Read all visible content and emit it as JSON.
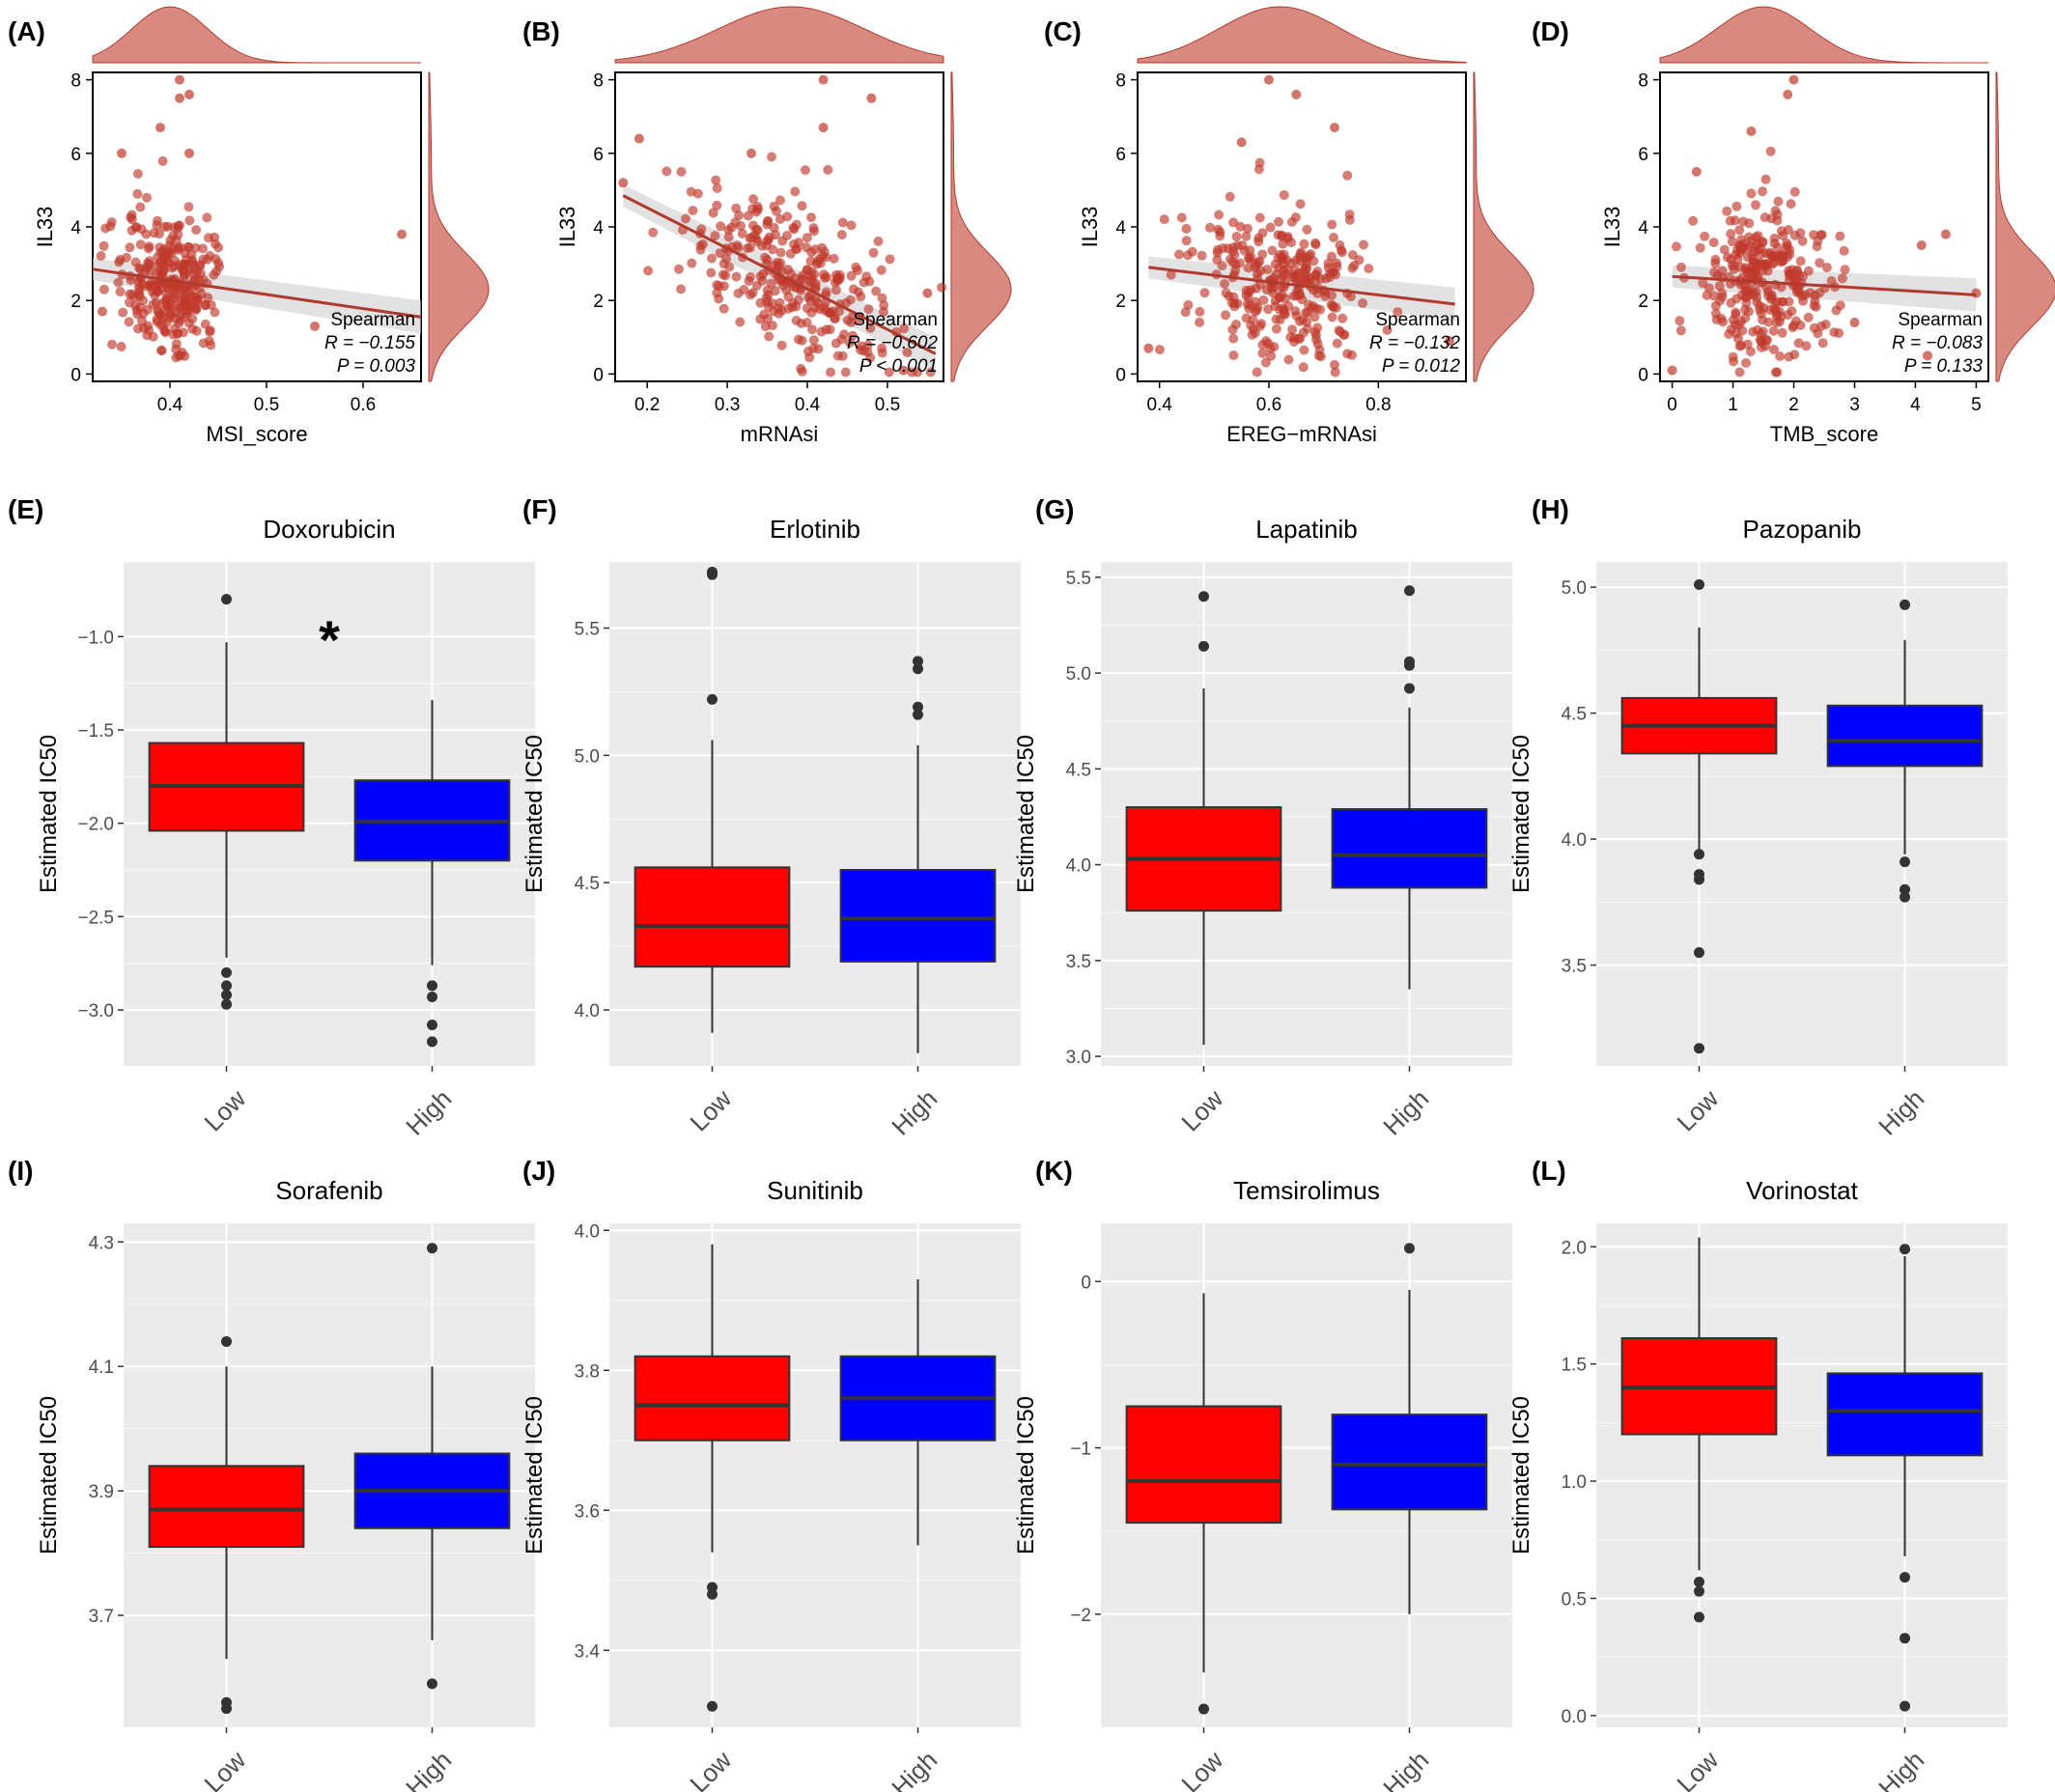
{
  "colors": {
    "scatter_point": "#c0392b",
    "scatter_line": "#b03a2e",
    "density_fill": "#d98a80",
    "panel_bg": "#ebebeb",
    "grid": "#ffffff",
    "box_low": "#ff0000",
    "box_high": "#0000ff",
    "median": "#333333",
    "outlier": "#333333"
  },
  "chart_data": [
    {
      "type": "scatter",
      "label": "(A)",
      "xlabel": "MSI_score",
      "ylabel": "IL33",
      "xlim": [
        0.32,
        0.66
      ],
      "ylim": [
        -0.2,
        8.2
      ],
      "xticks": [
        0.4,
        0.5,
        0.6
      ],
      "yticks": [
        0,
        2,
        4,
        6,
        8
      ],
      "xcenter": 0.4,
      "xspread": 0.028,
      "fit": {
        "x": [
          0.32,
          0.66
        ],
        "y": [
          2.85,
          1.55
        ]
      },
      "stat": {
        "method": "Spearman",
        "r_text": "R = −0.155",
        "p_text": "P = 0.003"
      },
      "extra_points": [
        [
          0.41,
          8.0
        ],
        [
          0.42,
          7.6
        ],
        [
          0.41,
          7.5
        ],
        [
          0.39,
          6.7
        ],
        [
          0.42,
          6.0
        ],
        [
          0.35,
          6.0
        ],
        [
          0.64,
          3.8
        ],
        [
          0.55,
          1.3
        ],
        [
          0.33,
          1.7
        ]
      ]
    },
    {
      "type": "scatter",
      "label": "(B)",
      "xlabel": "mRNAsi",
      "ylabel": "IL33",
      "xlim": [
        0.16,
        0.57
      ],
      "ylim": [
        -0.2,
        8.2
      ],
      "xticks": [
        0.2,
        0.3,
        0.4,
        0.5
      ],
      "yticks": [
        0,
        2,
        4,
        6,
        8
      ],
      "xcenter": 0.38,
      "xspread": 0.065,
      "fit": {
        "x": [
          0.17,
          0.56
        ],
        "y": [
          4.85,
          0.55
        ]
      },
      "stat": {
        "method": "Spearman",
        "r_text": "R = −0.602",
        "p_text": "P < 0.001"
      },
      "extra_points": [
        [
          0.42,
          8.0
        ],
        [
          0.48,
          7.5
        ],
        [
          0.42,
          6.7
        ],
        [
          0.19,
          6.4
        ],
        [
          0.33,
          6.0
        ],
        [
          0.17,
          5.2
        ],
        [
          0.55,
          2.2
        ],
        [
          0.52,
          0.1
        ]
      ]
    },
    {
      "type": "scatter",
      "label": "(C)",
      "xlabel": "EREG−mRNAsi",
      "ylabel": "IL33",
      "xlim": [
        0.36,
        0.96
      ],
      "ylim": [
        -0.2,
        8.2
      ],
      "xticks": [
        0.4,
        0.6,
        0.8
      ],
      "yticks": [
        0,
        2,
        4,
        6,
        8
      ],
      "xcenter": 0.62,
      "xspread": 0.08,
      "fit": {
        "x": [
          0.38,
          0.94
        ],
        "y": [
          2.9,
          1.9
        ]
      },
      "stat": {
        "method": "Spearman",
        "r_text": "R = −0.132",
        "p_text": "P = 0.012"
      },
      "extra_points": [
        [
          0.6,
          8.0
        ],
        [
          0.65,
          7.6
        ],
        [
          0.72,
          6.7
        ],
        [
          0.38,
          0.7
        ],
        [
          0.93,
          0.9
        ],
        [
          0.55,
          6.3
        ]
      ]
    },
    {
      "type": "scatter",
      "label": "(D)",
      "xlabel": "TMB_score",
      "ylabel": "IL33",
      "xlim": [
        -0.2,
        5.2
      ],
      "ylim": [
        -0.2,
        8.2
      ],
      "xticks": [
        0,
        1,
        2,
        3,
        4,
        5
      ],
      "yticks": [
        0,
        2,
        4,
        6,
        8
      ],
      "xcenter": 1.5,
      "xspread": 0.55,
      "fit": {
        "x": [
          0.0,
          5.0
        ],
        "y": [
          2.65,
          2.15
        ]
      },
      "stat": {
        "method": "Spearman",
        "r_text": "R = −0.083",
        "p_text": "P = 0.133"
      },
      "extra_points": [
        [
          2.0,
          8.0
        ],
        [
          1.9,
          7.6
        ],
        [
          1.3,
          6.6
        ],
        [
          0.4,
          5.5
        ],
        [
          4.5,
          3.8
        ],
        [
          4.1,
          3.5
        ],
        [
          5.0,
          2.2
        ],
        [
          3.0,
          1.4
        ],
        [
          0.0,
          0.1
        ],
        [
          4.2,
          0.5
        ]
      ]
    },
    {
      "type": "box",
      "label": "(E)",
      "title": "Doxorubicin",
      "ylabel": "Estimated IC50",
      "categories": [
        "Low",
        "High"
      ],
      "ylim": [
        -3.3,
        -0.6
      ],
      "yticks": [
        -3.0,
        -2.5,
        -2.0,
        -1.5,
        -1.0
      ],
      "annotation": "*",
      "boxes": [
        {
          "q1": -2.04,
          "median": -1.8,
          "q3": -1.57,
          "whisker_low": -2.72,
          "whisker_high": -1.03,
          "outliers": [
            -0.8,
            -2.8,
            -2.87,
            -2.92,
            -2.97
          ]
        },
        {
          "q1": -2.2,
          "median": -1.99,
          "q3": -1.77,
          "whisker_low": -2.76,
          "whisker_high": -1.34,
          "outliers": [
            -2.87,
            -2.93,
            -3.08,
            -3.17
          ]
        }
      ]
    },
    {
      "type": "box",
      "label": "(F)",
      "title": "Erlotinib",
      "ylabel": "Estimated IC50",
      "categories": [
        "Low",
        "High"
      ],
      "ylim": [
        3.78,
        5.76
      ],
      "yticks": [
        4.0,
        4.5,
        5.0,
        5.5
      ],
      "boxes": [
        {
          "q1": 4.17,
          "median": 4.33,
          "q3": 4.56,
          "whisker_low": 3.91,
          "whisker_high": 5.06,
          "outliers": [
            5.71,
            5.72,
            5.22
          ]
        },
        {
          "q1": 4.19,
          "median": 4.36,
          "q3": 4.55,
          "whisker_low": 3.83,
          "whisker_high": 5.04,
          "outliers": [
            5.37,
            5.34,
            5.19,
            5.16
          ]
        }
      ]
    },
    {
      "type": "box",
      "label": "(G)",
      "title": "Lapatinib",
      "ylabel": "Estimated IC50",
      "categories": [
        "Low",
        "High"
      ],
      "ylim": [
        2.95,
        5.58
      ],
      "yticks": [
        3.0,
        3.5,
        4.0,
        4.5,
        5.0,
        5.5
      ],
      "boxes": [
        {
          "q1": 3.76,
          "median": 4.03,
          "q3": 4.3,
          "whisker_low": 3.06,
          "whisker_high": 4.92,
          "outliers": [
            5.4,
            5.14
          ]
        },
        {
          "q1": 3.88,
          "median": 4.05,
          "q3": 4.29,
          "whisker_low": 3.35,
          "whisker_high": 4.82,
          "outliers": [
            5.43,
            5.06,
            5.04,
            4.92
          ]
        }
      ]
    },
    {
      "type": "box",
      "label": "(H)",
      "title": "Pazopanib",
      "ylabel": "Estimated IC50",
      "categories": [
        "Low",
        "High"
      ],
      "ylim": [
        3.1,
        5.1
      ],
      "yticks": [
        3.5,
        4.0,
        4.5,
        5.0
      ],
      "boxes": [
        {
          "q1": 4.34,
          "median": 4.45,
          "q3": 4.56,
          "whisker_low": 3.95,
          "whisker_high": 4.84,
          "outliers": [
            5.01,
            3.94,
            3.86,
            3.84,
            3.55,
            3.17
          ]
        },
        {
          "q1": 4.29,
          "median": 4.39,
          "q3": 4.53,
          "whisker_low": 3.94,
          "whisker_high": 4.79,
          "outliers": [
            4.93,
            3.91,
            3.8,
            3.77
          ]
        }
      ]
    },
    {
      "type": "box",
      "label": "(I)",
      "title": "Sorafenib",
      "ylabel": "Estimated IC50",
      "categories": [
        "Low",
        "High"
      ],
      "ylim": [
        3.52,
        4.33
      ],
      "yticks": [
        3.7,
        3.9,
        4.1,
        4.3
      ],
      "boxes": [
        {
          "q1": 3.81,
          "median": 3.87,
          "q3": 3.94,
          "whisker_low": 3.63,
          "whisker_high": 4.1,
          "outliers": [
            4.14,
            3.56,
            3.55
          ]
        },
        {
          "q1": 3.84,
          "median": 3.9,
          "q3": 3.96,
          "whisker_low": 3.66,
          "whisker_high": 4.1,
          "outliers": [
            4.29,
            3.59
          ]
        }
      ]
    },
    {
      "type": "box",
      "label": "(J)",
      "title": "Sunitinib",
      "ylabel": "Estimated IC50",
      "categories": [
        "Low",
        "High"
      ],
      "ylim": [
        3.29,
        4.01
      ],
      "yticks": [
        3.4,
        3.6,
        3.8,
        4.0
      ],
      "boxes": [
        {
          "q1": 3.7,
          "median": 3.75,
          "q3": 3.82,
          "whisker_low": 3.54,
          "whisker_high": 3.98,
          "outliers": [
            3.49,
            3.48,
            3.32
          ]
        },
        {
          "q1": 3.7,
          "median": 3.76,
          "q3": 3.82,
          "whisker_low": 3.55,
          "whisker_high": 3.93,
          "outliers": []
        }
      ]
    },
    {
      "type": "box",
      "label": "(K)",
      "title": "Temsirolimus",
      "ylabel": "Estimated IC50",
      "categories": [
        "Low",
        "High"
      ],
      "ylim": [
        -2.68,
        0.35
      ],
      "yticks": [
        -2,
        -1,
        0
      ],
      "boxes": [
        {
          "q1": -1.45,
          "median": -1.2,
          "q3": -0.75,
          "whisker_low": -2.35,
          "whisker_high": -0.07,
          "outliers": [
            -2.57
          ]
        },
        {
          "q1": -1.37,
          "median": -1.1,
          "q3": -0.8,
          "whisker_low": -2.0,
          "whisker_high": -0.05,
          "outliers": [
            0.2
          ]
        }
      ]
    },
    {
      "type": "box",
      "label": "(L)",
      "title": "Vorinostat",
      "ylabel": "Estimated IC50",
      "categories": [
        "Low",
        "High"
      ],
      "ylim": [
        -0.05,
        2.1
      ],
      "yticks": [
        0.0,
        0.5,
        1.0,
        1.5,
        2.0
      ],
      "boxes": [
        {
          "q1": 1.2,
          "median": 1.4,
          "q3": 1.61,
          "whisker_low": 0.62,
          "whisker_high": 2.04,
          "outliers": [
            0.57,
            0.53,
            0.42
          ]
        },
        {
          "q1": 1.11,
          "median": 1.3,
          "q3": 1.46,
          "whisker_low": 0.68,
          "whisker_high": 1.96,
          "outliers": [
            1.99,
            0.59,
            0.33,
            0.04
          ]
        }
      ]
    }
  ]
}
